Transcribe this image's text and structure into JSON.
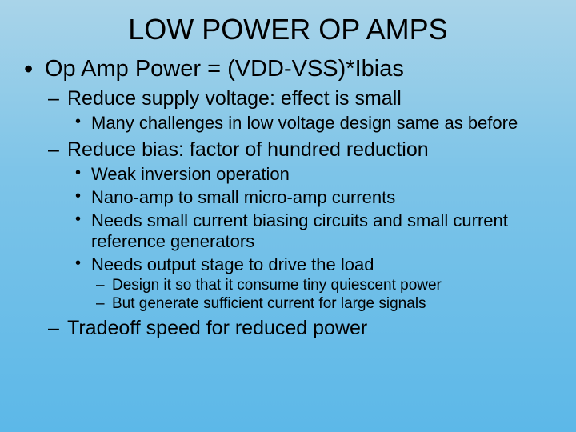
{
  "background": {
    "gradient_top": "#a9d4e9",
    "gradient_mid": "#7dc4e8",
    "gradient_bottom": "#5cb8e8"
  },
  "typography": {
    "title_fontsize": 36,
    "lvl1_fontsize": 29,
    "lvl2_fontsize": 25,
    "lvl3_fontsize": 22,
    "lvl4_fontsize": 19,
    "font_family": "Arial",
    "text_color": "#000000"
  },
  "title": "LOW POWER OP AMPS",
  "bullets": {
    "lvl1_0": "Op Amp Power = (VDD-VSS)*Ibias",
    "lvl2_0": "Reduce supply voltage: effect is small",
    "lvl3_0": "Many challenges in low voltage design same as before",
    "lvl2_1": "Reduce bias: factor of hundred reduction",
    "lvl3_1": "Weak inversion operation",
    "lvl3_2": "Nano-amp to small micro-amp currents",
    "lvl3_3": "Needs small current biasing circuits and small current reference generators",
    "lvl3_4": "Needs output stage to drive the load",
    "lvl4_0": "Design it so that it consume tiny quiescent power",
    "lvl4_1": "But generate sufficient current for large signals",
    "lvl2_2": "Tradeoff speed for reduced power"
  }
}
